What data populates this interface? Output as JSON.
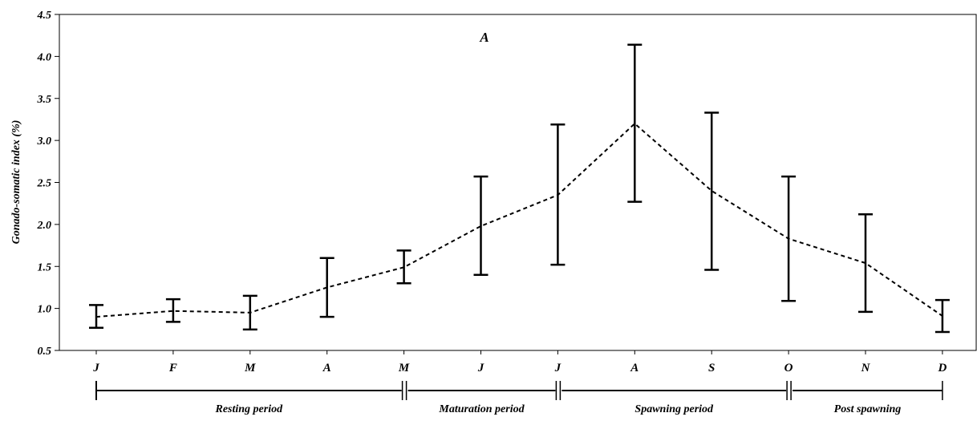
{
  "chart_data": {
    "type": "line",
    "title": "A",
    "xlabel": "",
    "ylabel": "Gonado-somatic index (%)",
    "ylim": [
      0.5,
      4.5
    ],
    "yticks": [
      "0.5",
      "1.0",
      "1.5",
      "2.0",
      "2.5",
      "3.0",
      "3.5",
      "4.0",
      "4.5"
    ],
    "categories": [
      "J",
      "F",
      "M",
      "A",
      "M",
      "J",
      "J",
      "A",
      "S",
      "O",
      "N",
      "D"
    ],
    "series": [
      {
        "values": [
          0.9,
          0.97,
          0.95,
          1.25,
          1.49,
          1.98,
          2.35,
          3.2,
          2.4,
          1.83,
          1.54,
          0.91
        ],
        "lower": [
          0.77,
          0.84,
          0.75,
          0.9,
          1.3,
          1.4,
          1.52,
          2.27,
          1.46,
          1.09,
          0.96,
          0.72
        ],
        "upper": [
          1.04,
          1.11,
          1.15,
          1.6,
          1.69,
          2.57,
          3.19,
          4.14,
          3.33,
          2.57,
          2.12,
          1.1
        ],
        "line_style": "dashed"
      }
    ],
    "periods": [
      {
        "label": "Resting period",
        "from_index": 0,
        "to_index": 4
      },
      {
        "label": "Maturation period",
        "from_index": 4,
        "to_index": 6
      },
      {
        "label": "Spawning period",
        "from_index": 6,
        "to_index": 9
      },
      {
        "label": "Post spawning",
        "from_index": 9,
        "to_index": 11
      }
    ],
    "grid": false,
    "colors": {
      "line": "#000000",
      "axis": "#000000"
    }
  }
}
